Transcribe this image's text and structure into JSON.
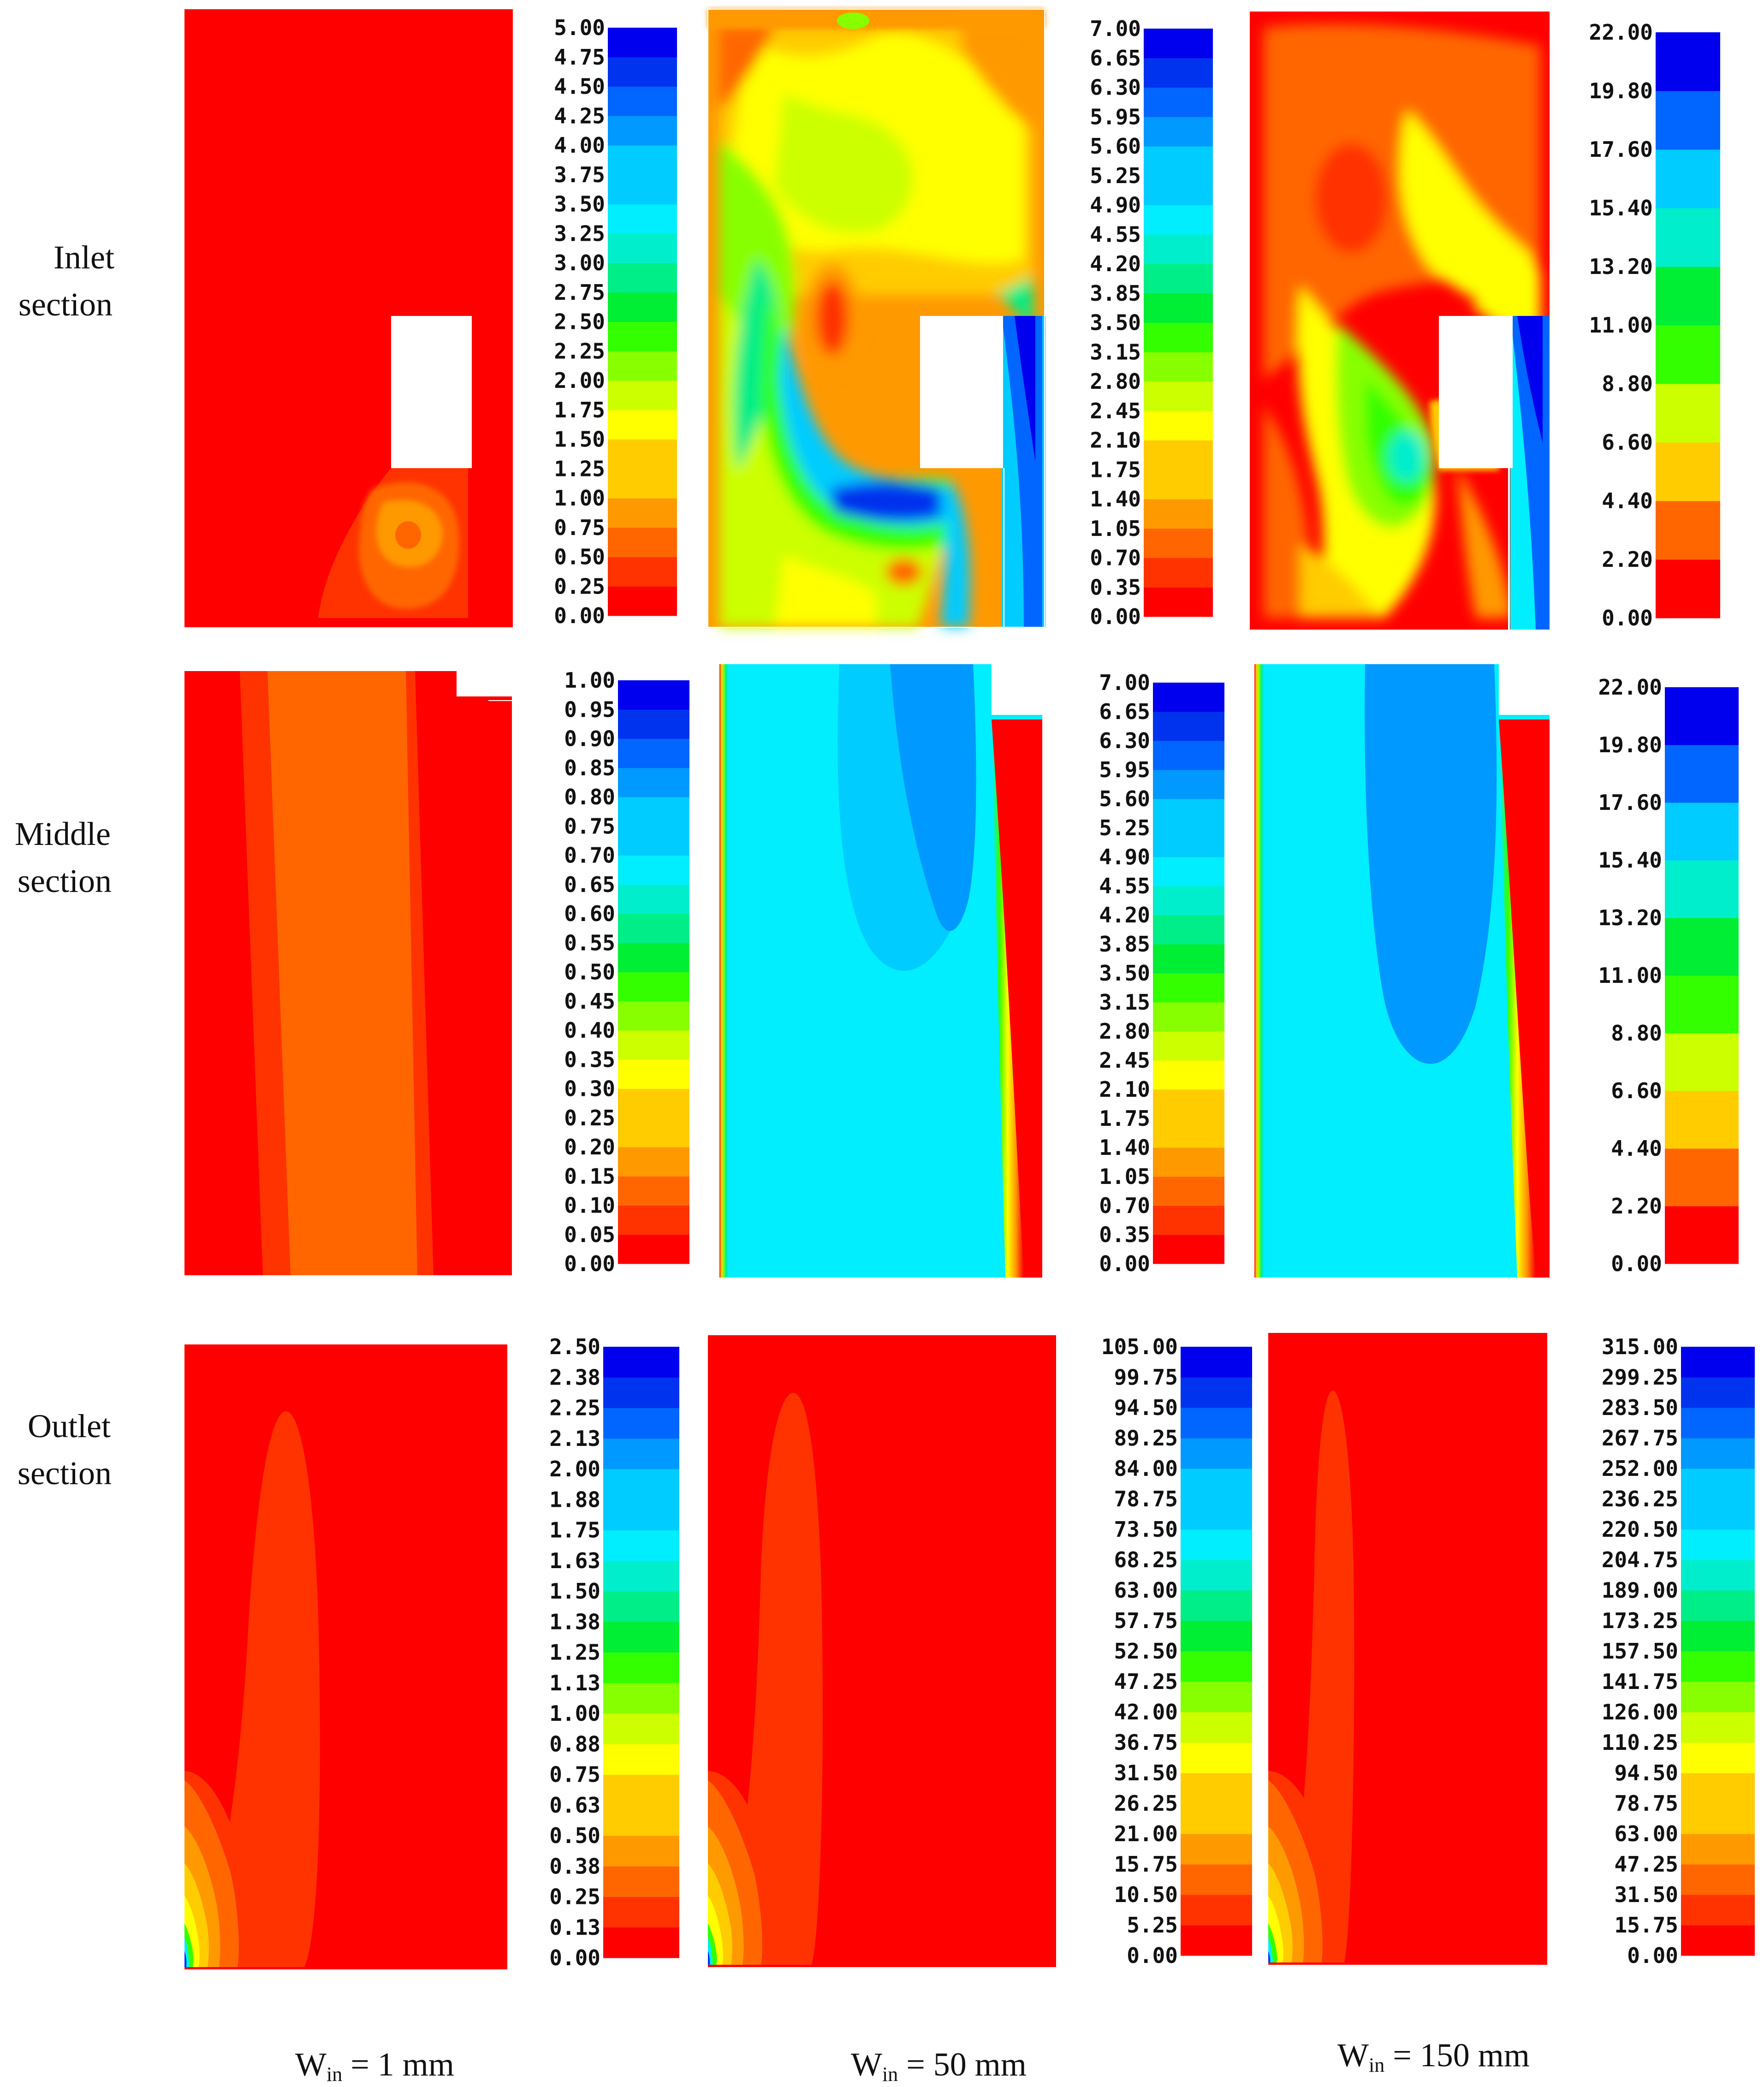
{
  "figure": {
    "rows": [
      {
        "label": [
          "Inlet",
          "section"
        ]
      },
      {
        "label": [
          "Middle",
          "section"
        ]
      },
      {
        "label": [
          "Outlet",
          "section"
        ]
      }
    ],
    "columns": [
      {
        "label_main": "W",
        "label_sub": "in",
        "label_rest": " = 1 mm"
      },
      {
        "label_main": "W",
        "label_sub": "in",
        "label_rest": " = 50 mm"
      },
      {
        "label_main": "W",
        "label_sub": "in",
        "label_rest": " = 150 mm"
      }
    ],
    "colorbar_colors": [
      "#ff0000",
      "#ff3300",
      "#ff6600",
      "#ff9900",
      "#ffcc00",
      "#ffff00",
      "#ccff00",
      "#88ff00",
      "#33ff00",
      "#00ee33",
      "#00ee88",
      "#00eecc",
      "#00eeff",
      "#00ccff",
      "#0099ff",
      "#0066ff",
      "#0033ee",
      "#0000ee"
    ],
    "colorbars": [
      {
        "id": "r0c0",
        "ticks": [
          "5.00",
          "4.75",
          "4.50",
          "4.25",
          "4.00",
          "3.75",
          "3.50",
          "3.25",
          "3.00",
          "2.75",
          "2.50",
          "2.25",
          "2.00",
          "1.75",
          "1.50",
          "1.25",
          "1.00",
          "0.75",
          "0.50",
          "0.25",
          "0.00"
        ]
      },
      {
        "id": "r0c1",
        "ticks": [
          "7.00",
          "6.65",
          "6.30",
          "5.95",
          "5.60",
          "5.25",
          "4.90",
          "4.55",
          "4.20",
          "3.85",
          "3.50",
          "3.15",
          "2.80",
          "2.45",
          "2.10",
          "1.75",
          "1.40",
          "1.05",
          "0.70",
          "0.35",
          "0.00"
        ]
      },
      {
        "id": "r0c2",
        "ticks": [
          "22.00",
          "19.80",
          "17.60",
          "15.40",
          "13.20",
          "11.00",
          "8.80",
          "6.60",
          "4.40",
          "2.20",
          "0.00"
        ]
      },
      {
        "id": "r1c0",
        "ticks": [
          "1.00",
          "0.95",
          "0.90",
          "0.85",
          "0.80",
          "0.75",
          "0.70",
          "0.65",
          "0.60",
          "0.55",
          "0.50",
          "0.45",
          "0.40",
          "0.35",
          "0.30",
          "0.25",
          "0.20",
          "0.15",
          "0.10",
          "0.05",
          "0.00"
        ]
      },
      {
        "id": "r1c1",
        "ticks": [
          "7.00",
          "6.65",
          "6.30",
          "5.95",
          "5.60",
          "5.25",
          "4.90",
          "4.55",
          "4.20",
          "3.85",
          "3.50",
          "3.15",
          "2.80",
          "2.45",
          "2.10",
          "1.75",
          "1.40",
          "1.05",
          "0.70",
          "0.35",
          "0.00"
        ]
      },
      {
        "id": "r1c2",
        "ticks": [
          "22.00",
          "19.80",
          "17.60",
          "15.40",
          "13.20",
          "11.00",
          "8.80",
          "6.60",
          "4.40",
          "2.20",
          "0.00"
        ]
      },
      {
        "id": "r2c0",
        "ticks": [
          "2.50",
          "2.38",
          "2.25",
          "2.13",
          "2.00",
          "1.88",
          "1.75",
          "1.63",
          "1.50",
          "1.38",
          "1.25",
          "1.13",
          "1.00",
          "0.88",
          "0.75",
          "0.63",
          "0.50",
          "0.38",
          "0.25",
          "0.13",
          "0.00"
        ]
      },
      {
        "id": "r2c1",
        "ticks": [
          "105.00",
          "99.75",
          "94.50",
          "89.25",
          "84.00",
          "78.75",
          "73.50",
          "68.25",
          "63.00",
          "57.75",
          "52.50",
          "47.25",
          "42.00",
          "36.75",
          "31.50",
          "26.25",
          "21.00",
          "15.75",
          "10.50",
          "5.25",
          "0.00"
        ]
      },
      {
        "id": "r2c2",
        "ticks": [
          "315.00",
          "299.25",
          "283.50",
          "267.75",
          "252.00",
          "236.25",
          "220.50",
          "204.75",
          "189.00",
          "173.25",
          "157.50",
          "141.75",
          "126.00",
          "110.25",
          "94.50",
          "78.75",
          "63.00",
          "47.25",
          "31.50",
          "15.75",
          "0.00"
        ]
      }
    ]
  }
}
